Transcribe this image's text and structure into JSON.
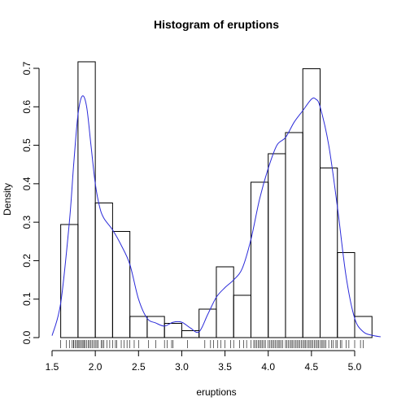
{
  "chart_data": {
    "type": "bar",
    "title": "Histogram of eruptions",
    "xlabel": "eruptions",
    "ylabel": "Density",
    "xlim": [
      1.5,
      5.25
    ],
    "ylim": [
      0,
      0.72
    ],
    "x_ticks": [
      1.5,
      2.0,
      2.5,
      3.0,
      3.5,
      4.0,
      4.5,
      5.0
    ],
    "x_tick_labels": [
      "1.5",
      "2.0",
      "2.5",
      "3.0",
      "3.5",
      "4.0",
      "4.5",
      "5.0"
    ],
    "y_ticks": [
      0.0,
      0.1,
      0.2,
      0.3,
      0.4,
      0.5,
      0.6,
      0.7
    ],
    "y_tick_labels": [
      "0.0",
      "0.1",
      "0.2",
      "0.3",
      "0.4",
      "0.5",
      "0.6",
      "0.7"
    ],
    "bins": [
      {
        "x0": 1.6,
        "x1": 1.8,
        "density": 0.294
      },
      {
        "x0": 1.8,
        "x1": 2.0,
        "density": 0.717
      },
      {
        "x0": 2.0,
        "x1": 2.2,
        "density": 0.35
      },
      {
        "x0": 2.2,
        "x1": 2.4,
        "density": 0.276
      },
      {
        "x0": 2.4,
        "x1": 2.6,
        "density": 0.055
      },
      {
        "x0": 2.6,
        "x1": 2.8,
        "density": 0.055
      },
      {
        "x0": 2.8,
        "x1": 3.0,
        "density": 0.037
      },
      {
        "x0": 3.0,
        "x1": 3.2,
        "density": 0.018
      },
      {
        "x0": 3.2,
        "x1": 3.4,
        "density": 0.074
      },
      {
        "x0": 3.4,
        "x1": 3.6,
        "density": 0.184
      },
      {
        "x0": 3.6,
        "x1": 3.8,
        "density": 0.11
      },
      {
        "x0": 3.8,
        "x1": 4.0,
        "density": 0.404
      },
      {
        "x0": 4.0,
        "x1": 4.2,
        "density": 0.478
      },
      {
        "x0": 4.2,
        "x1": 4.4,
        "density": 0.533
      },
      {
        "x0": 4.4,
        "x1": 4.6,
        "density": 0.699
      },
      {
        "x0": 4.6,
        "x1": 4.8,
        "density": 0.441
      },
      {
        "x0": 4.8,
        "x1": 5.0,
        "density": 0.221
      },
      {
        "x0": 5.0,
        "x1": 5.2,
        "density": 0.055
      }
    ],
    "density_curve": {
      "color": "#2b2bd9",
      "x": [
        1.5,
        1.6,
        1.7,
        1.75,
        1.8,
        1.85,
        1.9,
        1.95,
        2.0,
        2.05,
        2.1,
        2.2,
        2.3,
        2.4,
        2.5,
        2.6,
        2.7,
        2.8,
        2.9,
        3.0,
        3.1,
        3.2,
        3.3,
        3.4,
        3.5,
        3.6,
        3.7,
        3.8,
        3.9,
        4.0,
        4.1,
        4.2,
        4.3,
        4.4,
        4.5,
        4.55,
        4.6,
        4.7,
        4.8,
        4.9,
        5.0,
        5.1,
        5.2,
        5.3
      ],
      "y": [
        0.005,
        0.09,
        0.3,
        0.45,
        0.58,
        0.628,
        0.6,
        0.5,
        0.4,
        0.34,
        0.31,
        0.28,
        0.24,
        0.19,
        0.1,
        0.05,
        0.038,
        0.03,
        0.04,
        0.04,
        0.025,
        0.015,
        0.06,
        0.105,
        0.13,
        0.15,
        0.18,
        0.255,
        0.36,
        0.44,
        0.5,
        0.52,
        0.56,
        0.59,
        0.62,
        0.62,
        0.6,
        0.5,
        0.34,
        0.16,
        0.05,
        0.015,
        0.006,
        0.002
      ]
    },
    "rug": [
      1.6,
      1.667,
      1.7,
      1.733,
      1.75,
      1.75,
      1.767,
      1.783,
      1.8,
      1.8,
      1.8,
      1.817,
      1.833,
      1.833,
      1.85,
      1.867,
      1.867,
      1.883,
      1.9,
      1.917,
      1.933,
      1.95,
      1.967,
      1.983,
      2.0,
      2.017,
      2.033,
      2.067,
      2.083,
      2.1,
      2.133,
      2.167,
      2.2,
      2.233,
      2.25,
      2.3,
      2.333,
      2.367,
      2.4,
      2.45,
      2.5,
      2.617,
      2.7,
      2.8,
      2.833,
      2.883,
      2.9,
      3.067,
      3.267,
      3.333,
      3.367,
      3.417,
      3.45,
      3.5,
      3.567,
      3.6,
      3.667,
      3.717,
      3.75,
      3.8,
      3.833,
      3.85,
      3.867,
      3.883,
      3.9,
      3.917,
      3.933,
      3.95,
      3.967,
      4.0,
      4.017,
      4.033,
      4.05,
      4.067,
      4.083,
      4.1,
      4.117,
      4.133,
      4.15,
      4.167,
      4.2,
      4.217,
      4.233,
      4.25,
      4.267,
      4.283,
      4.3,
      4.317,
      4.333,
      4.35,
      4.367,
      4.383,
      4.4,
      4.417,
      4.433,
      4.45,
      4.467,
      4.483,
      4.5,
      4.517,
      4.533,
      4.55,
      4.567,
      4.583,
      4.6,
      4.617,
      4.633,
      4.65,
      4.667,
      4.7,
      4.733,
      4.75,
      4.783,
      4.8,
      4.833,
      4.85,
      4.9,
      4.933,
      5.0,
      5.067,
      5.1
    ]
  }
}
